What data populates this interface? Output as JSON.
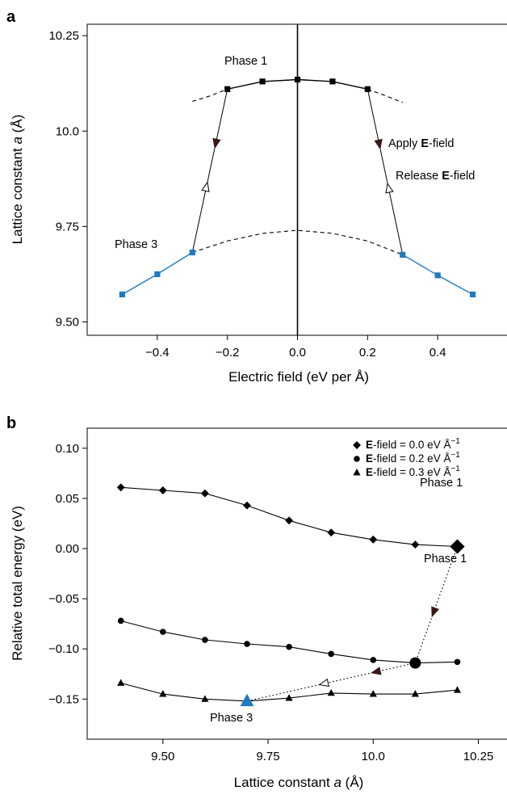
{
  "chart_data": [
    {
      "panel": "a",
      "type": "line",
      "xlabel": "Electric field (eV per Å)",
      "ylabel_pre": "Lattice constant ",
      "ylabel_var": "a",
      "ylabel_post": " (Å)",
      "xlim": [
        -0.6,
        0.6
      ],
      "ylim": [
        9.465,
        10.28
      ],
      "xticks": [
        -0.4,
        -0.2,
        0.0,
        0.2,
        0.4
      ],
      "xtick_labels": [
        "−0.4",
        "−0.2",
        "0.0",
        "0.2",
        "0.4"
      ],
      "yticks": [
        9.5,
        9.75,
        10.0,
        10.25
      ],
      "ytick_labels": [
        "9.50",
        "9.75",
        "10.0",
        "10.25"
      ],
      "series": [
        {
          "color": "#000000",
          "x": [
            -0.2,
            -0.1,
            0.0,
            0.1,
            0.2
          ],
          "y": [
            10.11,
            10.13,
            10.135,
            10.13,
            10.11
          ]
        },
        {
          "color": "#1f7bbf",
          "x": [
            -0.5,
            -0.4,
            -0.3
          ],
          "y": [
            9.572,
            9.625,
            9.682
          ]
        },
        {
          "color": "#1f7bbf",
          "x": [
            0.3,
            0.4,
            0.5
          ],
          "y": [
            9.676,
            9.622,
            9.572
          ]
        }
      ],
      "dashed_curves": [
        {
          "x": [
            -0.3,
            -0.2,
            -0.1,
            0.0,
            0.1,
            0.2,
            0.3
          ],
          "y": [
            9.682,
            9.712,
            9.732,
            9.74,
            9.732,
            9.712,
            9.676
          ]
        },
        {
          "x": [
            -0.3,
            -0.25,
            -0.2
          ],
          "y": [
            10.078,
            10.092,
            10.11
          ]
        },
        {
          "x": [
            0.2,
            0.25,
            0.3
          ],
          "y": [
            10.11,
            10.093,
            10.075
          ]
        }
      ],
      "transitions": [
        {
          "x1": -0.2,
          "y1": 10.11,
          "x2": -0.3,
          "y2": 9.682
        },
        {
          "x1": 0.2,
          "y1": 10.11,
          "x2": 0.3,
          "y2": 9.676
        }
      ],
      "zero_line_x": 0.0,
      "annotations": {
        "phase1": "Phase 1",
        "phase3": "Phase 3",
        "apply_pre": "Apply ",
        "apply_bold": "E",
        "apply_post": "-field",
        "release_pre": "Release ",
        "release_bold": "E",
        "release_post": "-field"
      }
    },
    {
      "panel": "b",
      "type": "line",
      "xlabel_pre": "Lattice constant ",
      "xlabel_var": "a",
      "xlabel_post": " (Å)",
      "ylabel": "Relative total energy (eV)",
      "xlim": [
        9.32,
        10.32
      ],
      "ylim": [
        -0.19,
        0.12
      ],
      "xticks": [
        9.5,
        9.75,
        10.0,
        10.25
      ],
      "xtick_labels": [
        "9.50",
        "9.75",
        "10.0",
        "10.25"
      ],
      "yticks": [
        -0.15,
        -0.1,
        -0.05,
        0.0,
        0.05,
        0.1
      ],
      "ytick_labels": [
        "−0.15",
        "−0.10",
        "−0.05",
        "0.00",
        "0.05",
        "0.10"
      ],
      "series": [
        {
          "name_bold": "E",
          "name_rest": "-field = 0.0 eV Å",
          "name_sup": "−1",
          "marker": "diamond",
          "x": [
            9.4,
            9.5,
            9.6,
            9.7,
            9.8,
            9.9,
            10.0,
            10.1,
            10.2
          ],
          "y": [
            0.061,
            0.058,
            0.055,
            0.043,
            0.028,
            0.016,
            0.009,
            0.004,
            0.002
          ]
        },
        {
          "name_bold": "E",
          "name_rest": "-field = 0.2 eV Å",
          "name_sup": "−1",
          "marker": "circle",
          "x": [
            9.4,
            9.5,
            9.6,
            9.7,
            9.8,
            9.9,
            10.0,
            10.1,
            10.2
          ],
          "y": [
            -0.072,
            -0.083,
            -0.091,
            -0.095,
            -0.098,
            -0.105,
            -0.111,
            -0.114,
            -0.113
          ]
        },
        {
          "name_bold": "E",
          "name_rest": "-field = 0.3 eV Å",
          "name_sup": "−1",
          "marker": "triangle",
          "x": [
            9.4,
            9.5,
            9.6,
            9.7,
            9.8,
            9.9,
            10.0,
            10.1,
            10.2
          ],
          "y": [
            -0.134,
            -0.145,
            -0.15,
            -0.152,
            -0.149,
            -0.144,
            -0.145,
            -0.145,
            -0.141
          ]
        }
      ],
      "highlights": [
        {
          "marker": "diamond",
          "x": 10.2,
          "y": 0.002,
          "color": "#000000"
        },
        {
          "marker": "circle",
          "x": 10.1,
          "y": -0.114,
          "color": "#000000"
        },
        {
          "marker": "triangle",
          "x": 9.7,
          "y": -0.152,
          "color": "#1f7bbf"
        }
      ],
      "dotted_path": [
        {
          "x": 10.2,
          "y": 0.002
        },
        {
          "x": 10.1,
          "y": -0.114
        },
        {
          "x": 9.7,
          "y": -0.152
        }
      ],
      "annotations": {
        "phase1_top": "Phase 1",
        "phase1_mid": "Phase 1",
        "phase3": "Phase 3"
      }
    }
  ]
}
